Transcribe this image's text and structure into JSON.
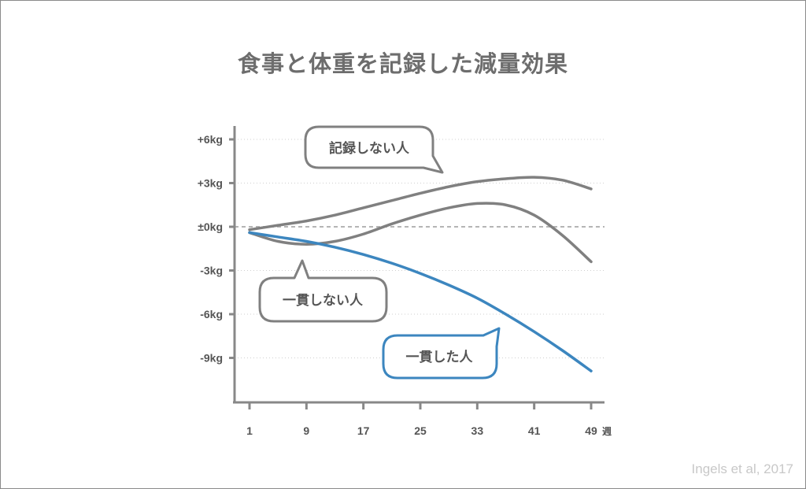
{
  "chart_data": {
    "type": "line",
    "title": "食事と体重を記録した減量効果",
    "x_unit": "週",
    "x_ticks": [
      1,
      9,
      17,
      25,
      33,
      41,
      49
    ],
    "y_ticks": [
      {
        "value": 6,
        "label": "+6kg"
      },
      {
        "value": 3,
        "label": "+3kg"
      },
      {
        "value": 0,
        "label": "±0kg"
      },
      {
        "value": -3,
        "label": "-3kg"
      },
      {
        "value": -6,
        "label": "-6kg"
      },
      {
        "value": -9,
        "label": "-9kg"
      }
    ],
    "ylim": [
      -12,
      6.5
    ],
    "xlim": [
      1,
      49
    ],
    "grid": true,
    "series": [
      {
        "name": "記録しない人",
        "color": "#808080",
        "x": [
          1,
          5,
          9,
          13,
          17,
          21,
          25,
          29,
          33,
          37,
          41,
          45,
          49
        ],
        "y": [
          -0.2,
          0.1,
          0.4,
          0.8,
          1.3,
          1.8,
          2.3,
          2.75,
          3.1,
          3.3,
          3.4,
          3.2,
          2.6
        ]
      },
      {
        "name": "一貫しない人",
        "color": "#808080",
        "x": [
          1,
          5,
          9,
          13,
          17,
          21,
          25,
          29,
          33,
          37,
          41,
          45,
          49
        ],
        "y": [
          -0.4,
          -1.0,
          -1.2,
          -1.0,
          -0.5,
          0.2,
          0.8,
          1.3,
          1.6,
          1.5,
          0.8,
          -0.6,
          -2.4
        ]
      },
      {
        "name": "一貫した人",
        "color": "#3c86bf",
        "x": [
          1,
          5,
          9,
          13,
          17,
          21,
          25,
          29,
          33,
          37,
          41,
          45,
          49
        ],
        "y": [
          -0.4,
          -0.7,
          -1.0,
          -1.4,
          -1.9,
          -2.5,
          -3.2,
          -4.0,
          -4.9,
          -6.0,
          -7.2,
          -8.5,
          -9.9
        ]
      }
    ],
    "source": "Ingels et al, 2017"
  }
}
